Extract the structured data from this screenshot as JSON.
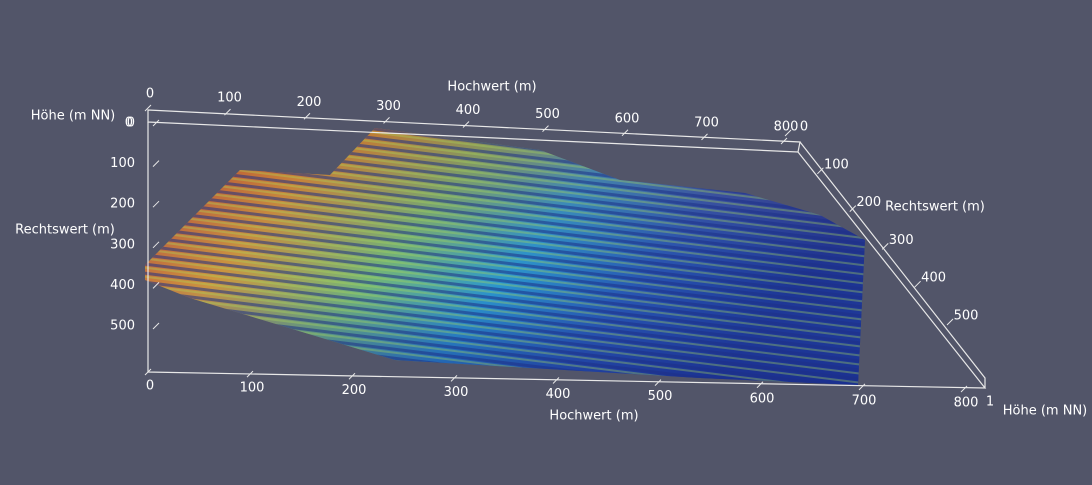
{
  "axes": {
    "hochwert_top": {
      "title": "Hochwert (m)",
      "ticks": [
        0,
        100,
        200,
        300,
        400,
        500,
        600,
        700,
        800
      ]
    },
    "hochwert_bottom": {
      "title": "Hochwert (m)",
      "ticks": [
        0,
        100,
        200,
        300,
        400,
        500,
        600,
        700,
        800
      ]
    },
    "rechtswert_left": {
      "title": "Rechtswert (m)",
      "ticks": [
        0,
        100,
        200,
        300,
        400,
        500
      ]
    },
    "rechtswert_right": {
      "title": "Rechtswert (m)",
      "ticks": [
        0,
        100,
        200,
        300,
        400,
        500
      ]
    },
    "hoehe_top": {
      "title": "Höhe (m NN)",
      "ticks": [
        0
      ]
    },
    "hoehe_bottom": {
      "title": "Höhe (m NN)",
      "ticks": [
        1
      ]
    }
  }
}
